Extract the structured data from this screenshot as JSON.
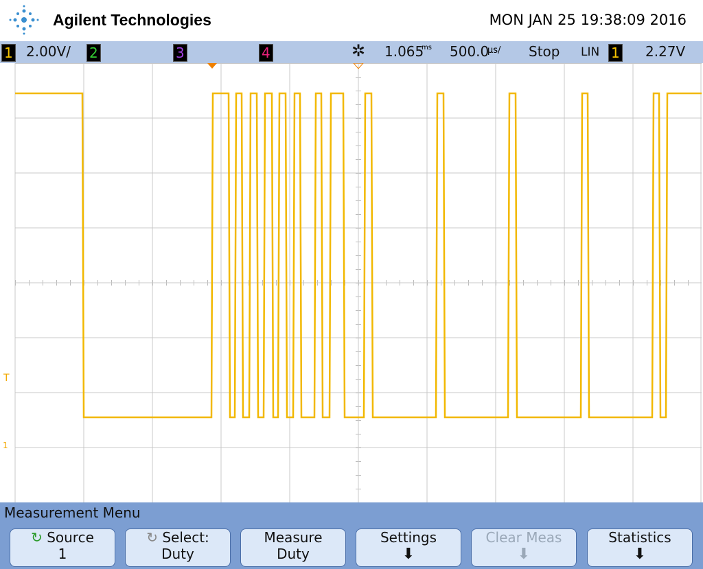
{
  "header": {
    "brand": "Agilent Technologies",
    "datetime": "MON JAN 25 19:38:09 2016"
  },
  "status": {
    "ch1": "1",
    "ch1_scale": "2.00V/",
    "ch2": "2",
    "ch3": "3",
    "ch4": "4",
    "delay": "1.065",
    "delay_unit": "ms",
    "timebase": "500.0",
    "timebase_unit": "µs/",
    "run_state": "Stop",
    "trigger_mode": "LIN",
    "trigger_channel": "1",
    "trigger_level": "2.27V"
  },
  "markers": {
    "trigger": "T",
    "ground": "1"
  },
  "menu": {
    "title": "Measurement Menu",
    "buttons": [
      {
        "line1": "Source",
        "line2": "1"
      },
      {
        "line1": "Select:",
        "line2": "Duty"
      },
      {
        "line1": "Measure",
        "line2": "Duty"
      },
      {
        "line1": "Settings"
      },
      {
        "line1": "Clear Meas"
      },
      {
        "line1": "Statistics"
      }
    ]
  }
}
